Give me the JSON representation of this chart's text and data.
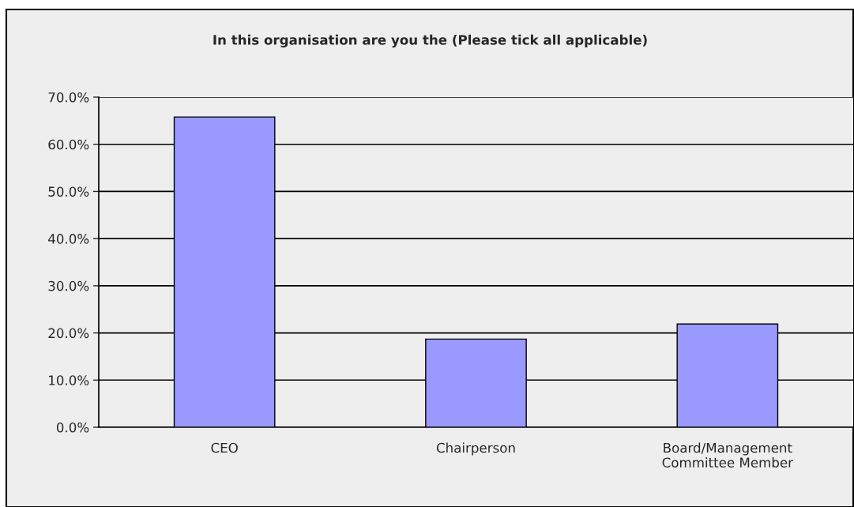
{
  "chart_data": {
    "type": "bar",
    "title": "In this organisation are you the (Please tick all applicable)",
    "categories": [
      "CEO",
      "Chairperson",
      "Board/Management\nCommittee Member"
    ],
    "values": [
      65.8,
      18.7,
      21.9
    ],
    "color": "#9999ff",
    "ylim": [
      0,
      70
    ],
    "yticks": [
      {
        "value": 0,
        "label": "0.0%"
      },
      {
        "value": 10,
        "label": "10.0%"
      },
      {
        "value": 20,
        "label": "20.0%"
      },
      {
        "value": 30,
        "label": "30.0%"
      },
      {
        "value": 40,
        "label": "40.0%"
      },
      {
        "value": 50,
        "label": "50.0%"
      },
      {
        "value": 60,
        "label": "60.0%"
      },
      {
        "value": 70,
        "label": "70.0%"
      }
    ],
    "grid": "y",
    "legend": false
  }
}
